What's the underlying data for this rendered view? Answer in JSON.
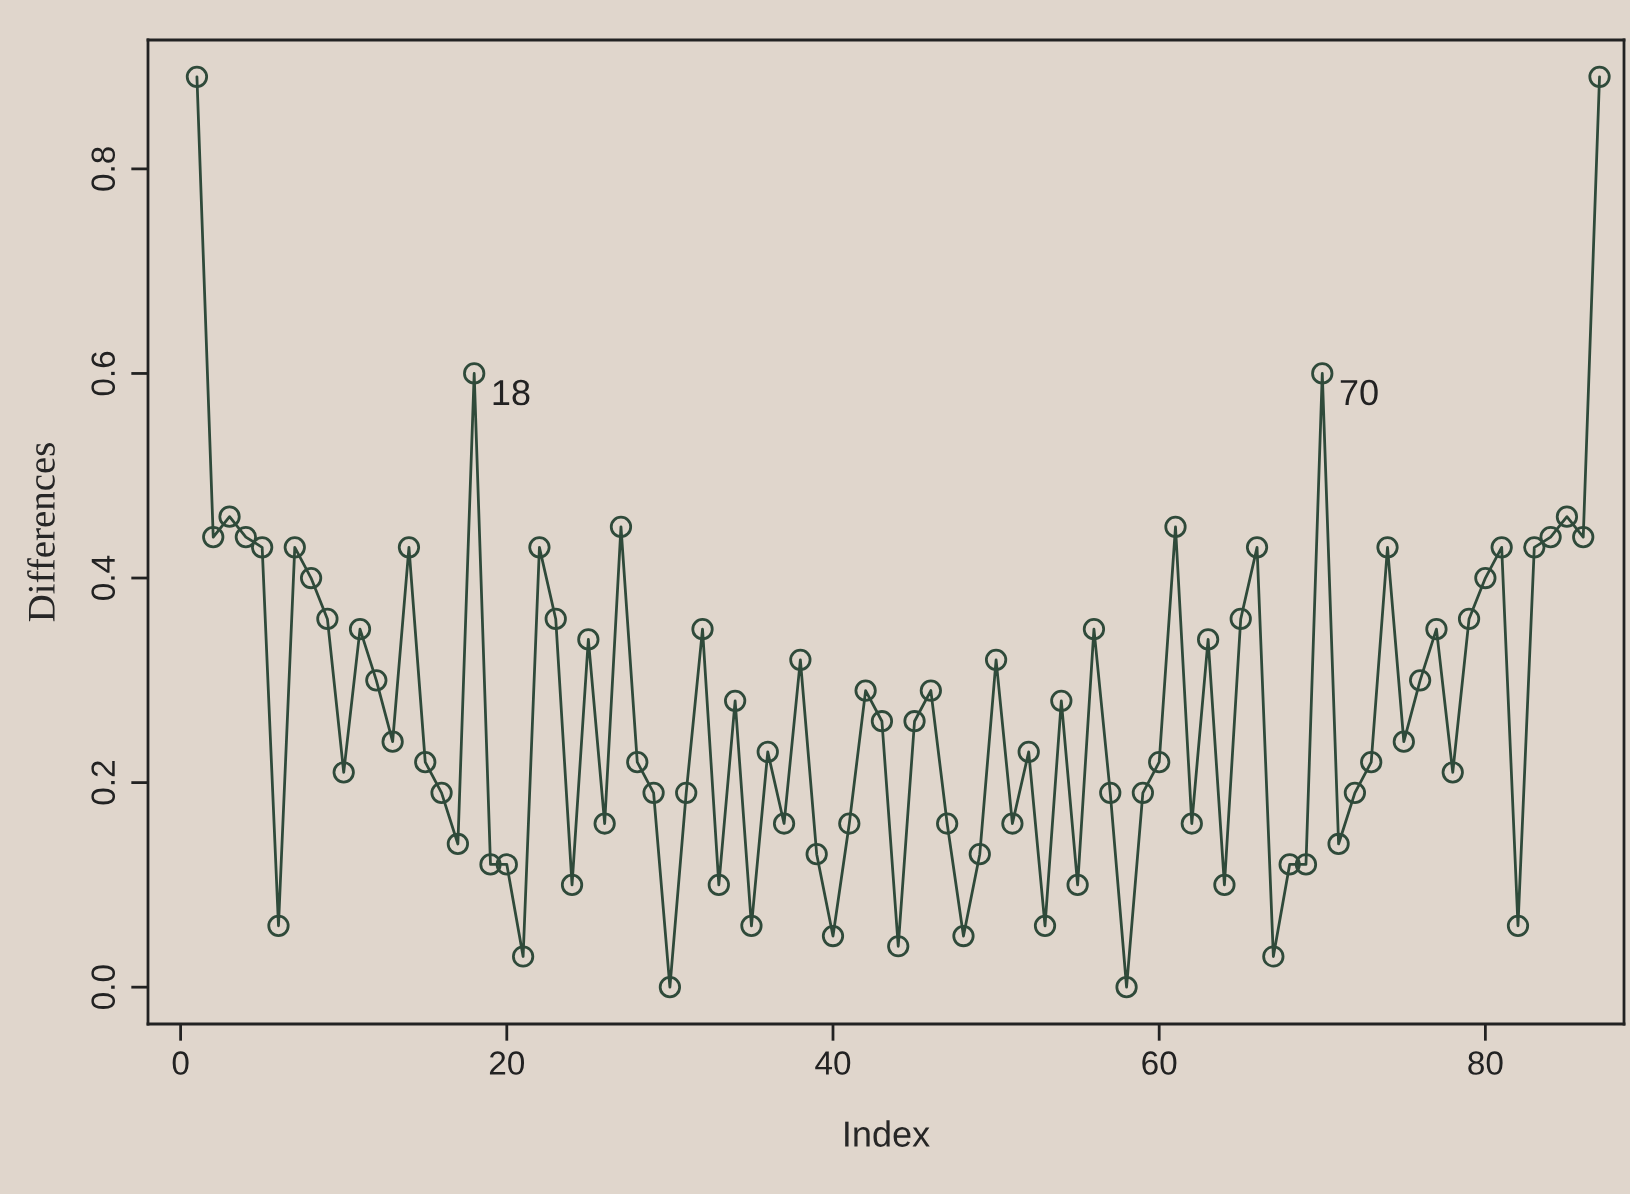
{
  "chart_data": {
    "type": "line",
    "xlabel": "Index",
    "ylabel": "Differences",
    "x": [
      1,
      2,
      3,
      4,
      5,
      6,
      7,
      8,
      9,
      10,
      11,
      12,
      13,
      14,
      15,
      16,
      17,
      18,
      19,
      20,
      21,
      22,
      23,
      24,
      25,
      26,
      27,
      28,
      29,
      30,
      31,
      32,
      33,
      34,
      35,
      36,
      37,
      38,
      39,
      40,
      41,
      42,
      43,
      44,
      45,
      46,
      47,
      48,
      49,
      50,
      51,
      52,
      53,
      54,
      55,
      56,
      57,
      58,
      59,
      60,
      61,
      62,
      63,
      64,
      65,
      66,
      67,
      68,
      69,
      70,
      71,
      72,
      73,
      74,
      75,
      76,
      77,
      78,
      79,
      80,
      81,
      82,
      83,
      84,
      85,
      86,
      87
    ],
    "series": [
      {
        "color": "#2f4a3a",
        "values": [
          0.89,
          0.44,
          0.46,
          0.44,
          0.43,
          0.06,
          0.43,
          0.4,
          0.36,
          0.21,
          0.35,
          0.3,
          0.24,
          0.43,
          0.22,
          0.19,
          0.14,
          0.6,
          0.12,
          0.12,
          0.03,
          0.43,
          0.36,
          0.1,
          0.34,
          0.16,
          0.45,
          0.22,
          0.19,
          0.0,
          0.19,
          0.35,
          0.1,
          0.28,
          0.06,
          0.23,
          0.16,
          0.32,
          0.13,
          0.05,
          0.16,
          0.29,
          0.26,
          0.04,
          0.26,
          0.29,
          0.16,
          0.05,
          0.13,
          0.32,
          0.16,
          0.23,
          0.06,
          0.28,
          0.1,
          0.35,
          0.19,
          0.0,
          0.19,
          0.22,
          0.45,
          0.16,
          0.34,
          0.1,
          0.36,
          0.43,
          0.03,
          0.12,
          0.12,
          0.6,
          0.14,
          0.19,
          0.22,
          0.43,
          0.24,
          0.3,
          0.35,
          0.21,
          0.36,
          0.4,
          0.43,
          0.06,
          0.43,
          0.44,
          0.46,
          0.44,
          0.89
        ]
      }
    ],
    "xlim": [
      -2,
      88.5
    ],
    "ylim": [
      -0.036,
      0.926
    ],
    "xticks": [
      0,
      20,
      40,
      60,
      80
    ],
    "yticks": [
      {
        "value": 0,
        "label": "0.0"
      },
      0.2,
      0.4,
      0.6,
      0.8
    ],
    "marker": "circle",
    "line_style": "solid",
    "grid": false,
    "legend": false,
    "annotations": [
      {
        "text": "18",
        "x": 18,
        "y": 0.6
      },
      {
        "text": "70",
        "x": 70,
        "y": 0.6
      }
    ]
  }
}
